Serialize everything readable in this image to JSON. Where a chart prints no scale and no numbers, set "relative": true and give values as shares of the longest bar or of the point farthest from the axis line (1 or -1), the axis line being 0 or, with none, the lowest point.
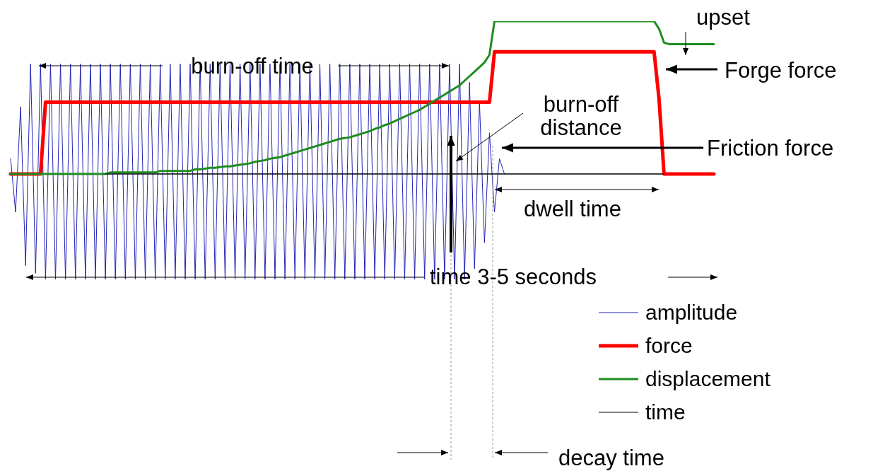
{
  "chart_data": {
    "type": "line",
    "relative": true,
    "legend": "bottom right",
    "categories": [
      null,
      null,
      null,
      null,
      null,
      null,
      null,
      null,
      null,
      null,
      null,
      null,
      null,
      null,
      null,
      null,
      null,
      null,
      null,
      null,
      null,
      null,
      null,
      null,
      null,
      null,
      null,
      null,
      null,
      null,
      null,
      null,
      null,
      null,
      null,
      null,
      null,
      null,
      null,
      null,
      null,
      null,
      null,
      null,
      null,
      null,
      null,
      null,
      null,
      null,
      null,
      null,
      null,
      null,
      null,
      null,
      null,
      null,
      null,
      null,
      null,
      null,
      null,
      null,
      null,
      null,
      null,
      null,
      null,
      null,
      null,
      null,
      null,
      null,
      null,
      null,
      null,
      null,
      null,
      null,
      null,
      null,
      null,
      null,
      null,
      null,
      null,
      null,
      null,
      null,
      null,
      null,
      null,
      null,
      null,
      null,
      null,
      null,
      null,
      null,
      null,
      null,
      null,
      null,
      null,
      null,
      null,
      null,
      null,
      null,
      null,
      null,
      null,
      null,
      null,
      null,
      null,
      null,
      null,
      null,
      null,
      null,
      null,
      null,
      null,
      null,
      null,
      null,
      null,
      null,
      null,
      null,
      null,
      null,
      null,
      null,
      null,
      null,
      null,
      null,
      null,
      null
    ],
    "series": [
      {
        "name": "amplitude",
        "color": "#2323b4",
        "values": [
          0.1,
          -0.25,
          0.44,
          -0.6,
          0.72,
          -0.65,
          0.72,
          -0.69,
          0.72,
          -0.69,
          0.72,
          -0.69,
          0.72,
          -0.69,
          0.72,
          -0.69,
          0.72,
          -0.69,
          0.72,
          -0.69,
          0.72,
          -0.69,
          0.72,
          -0.69,
          0.72,
          -0.69,
          0.72,
          -0.69,
          0.72,
          -0.69,
          0.72,
          -0.69,
          0.72,
          -0.69,
          0.72,
          -0.69,
          0.72,
          -0.69,
          0.72,
          -0.69,
          0.72,
          -0.69,
          0.72,
          -0.69,
          0.72,
          -0.69,
          0.72,
          -0.69,
          0.72,
          -0.69,
          0.72,
          -0.69,
          0.72,
          -0.69,
          0.72,
          -0.69,
          0.72,
          -0.69,
          0.72,
          -0.69,
          0.72,
          -0.69,
          0.72,
          -0.69,
          0.72,
          -0.69,
          0.72,
          -0.69,
          0.72,
          -0.69,
          0.72,
          -0.69,
          0.72,
          -0.69,
          0.72,
          -0.69,
          0.72,
          -0.69,
          0.72,
          -0.69,
          0.72,
          -0.69,
          0.72,
          -0.69,
          0.72,
          -0.69,
          0.72,
          -0.69,
          0.72,
          -0.69,
          0.72,
          -0.69,
          0.6,
          -0.62,
          0.47,
          -0.45,
          0.27,
          -0.25,
          0.1,
          0,
          null,
          null,
          null,
          null,
          null,
          null,
          null,
          null,
          null,
          null,
          null,
          null,
          null,
          null,
          null,
          null,
          null,
          null,
          null,
          null,
          null,
          null,
          null,
          null,
          null,
          null,
          null,
          null,
          null,
          null,
          null,
          null,
          null,
          null,
          null,
          null,
          null,
          null,
          null,
          null,
          null,
          null
        ]
      },
      {
        "name": "force",
        "color": "#ff0000",
        "values": [
          0,
          0,
          0,
          0,
          0,
          0,
          0,
          0.47,
          0.47,
          0.47,
          0.47,
          0.47,
          0.47,
          0.47,
          0.47,
          0.47,
          0.47,
          0.47,
          0.47,
          0.47,
          0.47,
          0.47,
          0.47,
          0.47,
          0.47,
          0.47,
          0.47,
          0.47,
          0.47,
          0.47,
          0.47,
          0.47,
          0.47,
          0.47,
          0.47,
          0.47,
          0.47,
          0.47,
          0.47,
          0.47,
          0.47,
          0.47,
          0.47,
          0.47,
          0.47,
          0.47,
          0.47,
          0.47,
          0.47,
          0.47,
          0.47,
          0.47,
          0.47,
          0.47,
          0.47,
          0.47,
          0.47,
          0.47,
          0.47,
          0.47,
          0.47,
          0.47,
          0.47,
          0.47,
          0.47,
          0.47,
          0.47,
          0.47,
          0.47,
          0.47,
          0.47,
          0.47,
          0.47,
          0.47,
          0.47,
          0.47,
          0.47,
          0.47,
          0.47,
          0.47,
          0.47,
          0.47,
          0.47,
          0.47,
          0.47,
          0.47,
          0.47,
          0.47,
          0.47,
          0.47,
          0.47,
          0.47,
          0.47,
          0.47,
          0.47,
          0.47,
          0.47,
          0.8,
          0.8,
          0.8,
          0.8,
          0.8,
          0.8,
          0.8,
          0.8,
          0.8,
          0.8,
          0.8,
          0.8,
          0.8,
          0.8,
          0.8,
          0.8,
          0.8,
          0.8,
          0.8,
          0.8,
          0.8,
          0.8,
          0.8,
          0.8,
          0.8,
          0.8,
          0.8,
          0.8,
          0.8,
          0.8,
          0.8,
          0.8,
          0.8,
          0.49,
          0,
          0,
          0,
          0,
          0,
          0,
          0,
          0,
          0,
          0,
          0
        ]
      },
      {
        "name": "displacement",
        "color": "#1e8c1e",
        "values": [
          0,
          0,
          0,
          0,
          0,
          0,
          0,
          0,
          0,
          0,
          0,
          0,
          0,
          0,
          0,
          0,
          0,
          0,
          0,
          0,
          0.01,
          0.01,
          0.01,
          0.01,
          0.01,
          0.01,
          0.01,
          0.01,
          0.01,
          0.01,
          0.02,
          0.02,
          0.02,
          0.02,
          0.02,
          0.02,
          0.02,
          0.03,
          0.03,
          0.035,
          0.04,
          0.04,
          0.045,
          0.05,
          0.05,
          0.055,
          0.06,
          0.065,
          0.07,
          0.08,
          0.085,
          0.09,
          0.1,
          0.105,
          0.11,
          0.12,
          0.13,
          0.14,
          0.15,
          0.16,
          0.17,
          0.18,
          0.19,
          0.2,
          0.21,
          0.22,
          0.23,
          0.235,
          0.24,
          0.25,
          0.26,
          0.27,
          0.28,
          0.295,
          0.305,
          0.32,
          0.33,
          0.345,
          0.36,
          0.375,
          0.39,
          0.405,
          0.42,
          0.44,
          0.46,
          0.48,
          0.5,
          0.52,
          0.54,
          0.56,
          0.58,
          0.61,
          0.64,
          0.67,
          0.7,
          0.73,
          0.78,
          1,
          1,
          1,
          1,
          1,
          1,
          1,
          1,
          1,
          1,
          1,
          1,
          1,
          1,
          1,
          1,
          1,
          1,
          1,
          1,
          1,
          1,
          1,
          1,
          1,
          1,
          1,
          1,
          1,
          1,
          1,
          1,
          1,
          0.95,
          0.86,
          0.85,
          0.85,
          0.85,
          0.85,
          0.85,
          0.85,
          0.85,
          0.85,
          0.85,
          0.85
        ]
      },
      {
        "name": "time",
        "color": "#000000",
        "values": [
          null,
          null,
          null,
          null,
          null,
          null,
          null,
          null,
          null,
          null,
          null,
          null,
          null,
          null,
          null,
          null,
          null,
          null,
          null,
          0,
          0,
          0,
          0,
          0,
          0,
          0,
          0,
          0,
          0,
          0,
          0,
          0,
          0,
          0,
          0,
          0,
          0,
          0,
          0,
          0,
          0,
          0,
          0,
          0,
          0,
          0,
          0,
          0,
          0,
          0,
          0,
          0,
          0,
          0,
          0,
          0,
          0,
          0,
          0,
          0,
          0,
          0,
          0,
          0,
          0,
          0,
          0,
          0,
          0,
          0,
          0,
          0,
          0,
          0,
          0,
          0,
          0,
          0,
          0,
          0,
          0,
          0,
          0,
          0,
          0,
          0,
          0,
          0,
          0,
          0,
          0,
          0,
          0,
          0,
          0,
          0,
          0,
          0,
          0,
          0,
          0,
          0,
          0,
          0,
          0,
          0,
          0,
          0,
          0,
          0,
          0,
          0,
          0,
          0,
          0,
          0,
          0,
          0,
          0,
          0,
          0,
          0,
          0,
          0,
          0,
          0,
          0,
          0,
          0,
          0,
          0,
          0,
          null,
          null,
          null,
          null,
          null,
          null,
          null,
          null,
          null,
          null
        ]
      }
    ],
    "annotations": [
      "burn-off time",
      "burn-off distance",
      "upset",
      "Forge force",
      "Friction force",
      "dwell time",
      "time 3-5 seconds",
      "decay time"
    ]
  }
}
